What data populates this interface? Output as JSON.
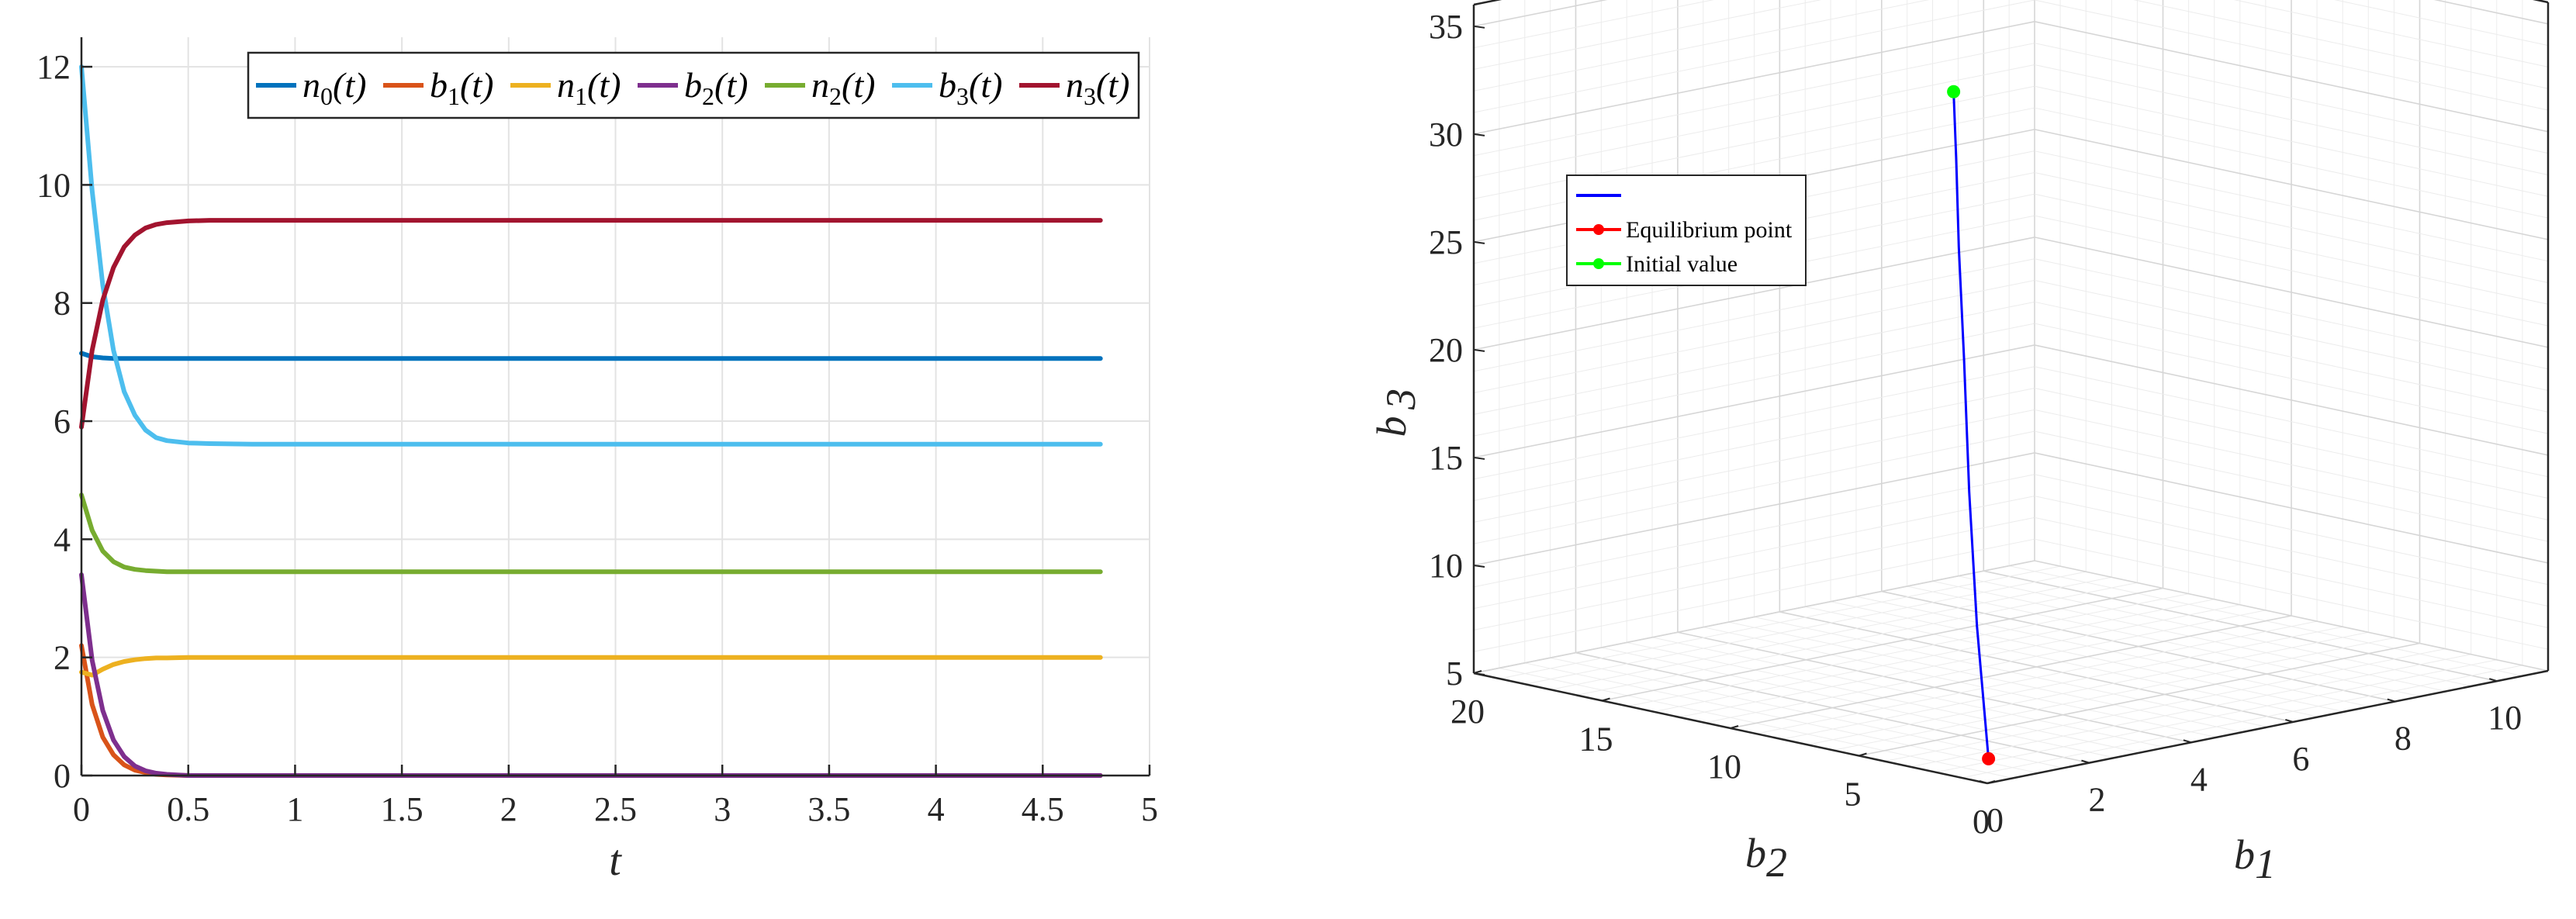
{
  "chart_data": [
    {
      "type": "line",
      "xlabel": "t",
      "ylabel": "",
      "xlim": [
        0,
        5
      ],
      "ylim": [
        0,
        12.5
      ],
      "xticks": [
        "0",
        "0.5",
        "1",
        "1.5",
        "2",
        "2.5",
        "3",
        "3.5",
        "4",
        "4.5",
        "5"
      ],
      "yticks": [
        "0",
        "2",
        "4",
        "6",
        "8",
        "10",
        "12"
      ],
      "grid": true,
      "legend_position": "top-right",
      "legend_orientation": "horizontal",
      "x": [
        0,
        0.05,
        0.1,
        0.15,
        0.2,
        0.25,
        0.3,
        0.35,
        0.4,
        0.5,
        0.6,
        0.8,
        1.0,
        1.5,
        2.0,
        2.5,
        3.0,
        3.5,
        4.0,
        4.5,
        4.77
      ],
      "series": [
        {
          "name": "n0(t)",
          "color": "#0072BD",
          "values": [
            7.15,
            7.09,
            7.07,
            7.06,
            7.06,
            7.06,
            7.06,
            7.06,
            7.06,
            7.06,
            7.06,
            7.06,
            7.06,
            7.06,
            7.06,
            7.06,
            7.06,
            7.06,
            7.06,
            7.06,
            7.06
          ]
        },
        {
          "name": "b1(t)",
          "color": "#D95319",
          "values": [
            2.2,
            1.2,
            0.65,
            0.35,
            0.18,
            0.09,
            0.05,
            0.02,
            0.01,
            0,
            0,
            0,
            0,
            0,
            0,
            0,
            0,
            0,
            0,
            0,
            0
          ]
        },
        {
          "name": "n1(t)",
          "color": "#EDB120",
          "values": [
            1.75,
            1.7,
            1.8,
            1.88,
            1.93,
            1.96,
            1.98,
            1.99,
            1.99,
            2.0,
            2.0,
            2.0,
            2.0,
            2.0,
            2.0,
            2.0,
            2.0,
            2.0,
            2.0,
            2.0,
            2.0
          ]
        },
        {
          "name": "b2(t)",
          "color": "#7E2F8E",
          "values": [
            3.4,
            1.95,
            1.1,
            0.6,
            0.32,
            0.16,
            0.08,
            0.04,
            0.02,
            0,
            0,
            0,
            0,
            0,
            0,
            0,
            0,
            0,
            0,
            0,
            0
          ]
        },
        {
          "name": "n2(t)",
          "color": "#77AC30",
          "values": [
            4.75,
            4.15,
            3.8,
            3.62,
            3.53,
            3.49,
            3.47,
            3.46,
            3.45,
            3.45,
            3.45,
            3.45,
            3.45,
            3.45,
            3.45,
            3.45,
            3.45,
            3.45,
            3.45,
            3.45,
            3.45
          ]
        },
        {
          "name": "b3(t)",
          "color": "#4DBEEE",
          "values": [
            12.0,
            9.9,
            8.3,
            7.2,
            6.5,
            6.1,
            5.85,
            5.72,
            5.67,
            5.63,
            5.62,
            5.61,
            5.61,
            5.61,
            5.61,
            5.61,
            5.61,
            5.61,
            5.61,
            5.61,
            5.61
          ]
        },
        {
          "name": "n3(t)",
          "color": "#A2142F",
          "values": [
            5.9,
            7.2,
            8.05,
            8.6,
            8.95,
            9.15,
            9.27,
            9.33,
            9.36,
            9.39,
            9.4,
            9.4,
            9.4,
            9.4,
            9.4,
            9.4,
            9.4,
            9.4,
            9.4,
            9.4,
            9.4
          ]
        }
      ]
    },
    {
      "type": "line",
      "title": "",
      "xlabel": "b1",
      "ylabel": "b2",
      "zlabel": "b3",
      "xlim": [
        0,
        11
      ],
      "ylim": [
        0,
        20
      ],
      "zlim": [
        5,
        36
      ],
      "xticks": [
        "0",
        "2",
        "4",
        "6",
        "8",
        "10"
      ],
      "yticks": [
        "0",
        "5",
        "10",
        "15",
        "20"
      ],
      "zticks": [
        "5",
        "10",
        "15",
        "20",
        "25",
        "30",
        "35"
      ],
      "grid": true,
      "legend_position": "top-left",
      "series": [
        {
          "name": "",
          "color": "#0000FF",
          "kind": "trajectory",
          "b1": [
            0.05,
            0.2,
            0.35,
            0.5,
            0.6,
            0.7,
            0.75
          ],
          "b2": [
            0.05,
            0.8,
            1.4,
            1.9,
            2.3,
            2.6,
            2.8
          ],
          "b3": [
            6.1,
            12,
            18,
            24,
            29,
            33,
            36
          ]
        },
        {
          "name": "Equilibrium point",
          "color": "#FF0000",
          "kind": "marker",
          "b1": [
            0.05
          ],
          "b2": [
            0.05
          ],
          "b3": [
            6.1
          ]
        },
        {
          "name": "Initial value",
          "color": "#00FF00",
          "kind": "marker",
          "b1": [
            0.75
          ],
          "b2": [
            2.8
          ],
          "b3": [
            36
          ]
        }
      ]
    }
  ]
}
